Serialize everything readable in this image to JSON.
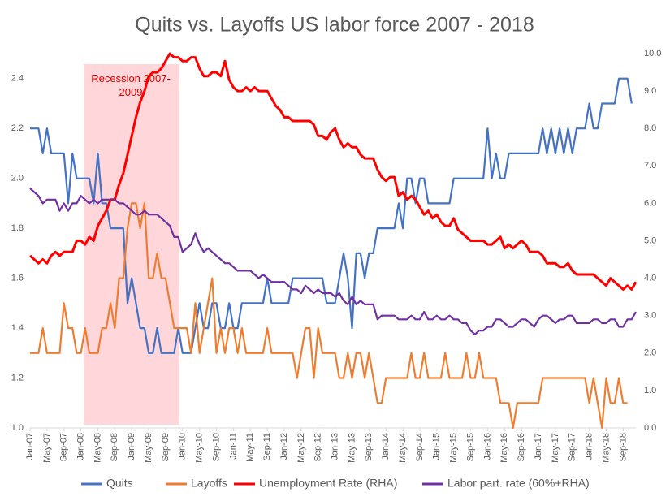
{
  "chart_data": {
    "type": "line",
    "title": "Quits vs. Layoffs US labor force 2007 - 2018",
    "annotation": "Recession 2007-2009",
    "categories": [
      "Jan-07",
      null,
      null,
      null,
      "May-07",
      null,
      null,
      null,
      "Sep-07",
      null,
      null,
      null,
      "Jan-08",
      null,
      null,
      null,
      "May-08",
      null,
      null,
      null,
      "Sep-08",
      null,
      null,
      null,
      "Jan-09",
      null,
      null,
      null,
      "May-09",
      null,
      null,
      null,
      "Sep-09",
      null,
      null,
      null,
      "Jan-10",
      null,
      null,
      null,
      "May-10",
      null,
      null,
      null,
      "Sep-10",
      null,
      null,
      null,
      "Jan-11",
      null,
      null,
      null,
      "May-11",
      null,
      null,
      null,
      "Sep-11",
      null,
      null,
      null,
      "Jan-12",
      null,
      null,
      null,
      "May-12",
      null,
      null,
      null,
      "Sep-12",
      null,
      null,
      null,
      "Jan-13",
      null,
      null,
      null,
      "May-13",
      null,
      null,
      null,
      "Sep-13",
      null,
      null,
      null,
      "Jan-14",
      null,
      null,
      null,
      "May-14",
      null,
      null,
      null,
      "Sep-14",
      null,
      null,
      null,
      "Jan-15",
      null,
      null,
      null,
      "May-15",
      null,
      null,
      null,
      "Sep-15",
      null,
      null,
      null,
      "Jan-16",
      null,
      null,
      null,
      "May-16",
      null,
      null,
      null,
      "Sep-16",
      null,
      null,
      null,
      "Jan-17",
      null,
      null,
      null,
      "May-17",
      null,
      null,
      null,
      "Sep-17",
      null,
      null,
      null,
      "Jan-18",
      null,
      null,
      null,
      "May-18",
      null,
      null,
      null,
      "Sep-18",
      null,
      null,
      null
    ],
    "series": [
      {
        "name": "Quits",
        "color": "#4472c4",
        "values": [
          2.2,
          2.2,
          2.2,
          2.1,
          2.2,
          2.1,
          2.1,
          2.1,
          2.1,
          1.9,
          2.1,
          2.0,
          2.0,
          2.0,
          2.0,
          1.9,
          2.1,
          1.9,
          1.9,
          1.8,
          1.8,
          1.8,
          1.8,
          1.5,
          1.6,
          1.5,
          1.4,
          1.4,
          1.3,
          1.3,
          1.4,
          1.3,
          1.3,
          1.3,
          1.3,
          1.4,
          1.3,
          1.3,
          1.3,
          1.4,
          1.5,
          1.4,
          1.4,
          1.5,
          1.5,
          1.4,
          1.4,
          1.5,
          1.4,
          1.4,
          1.5,
          1.5,
          1.5,
          1.5,
          1.5,
          1.5,
          1.6,
          1.5,
          1.5,
          1.5,
          1.5,
          1.5,
          1.6,
          1.6,
          1.6,
          1.6,
          1.6,
          1.6,
          1.6,
          1.6,
          1.5,
          1.5,
          1.5,
          1.6,
          1.7,
          1.6,
          1.4,
          1.7,
          1.7,
          1.6,
          1.7,
          1.7,
          1.8,
          1.8,
          1.8,
          1.8,
          1.8,
          1.9,
          1.8,
          2.0,
          2.0,
          1.9,
          2.0,
          2.0,
          1.9,
          1.9,
          1.9,
          1.9,
          1.9,
          1.9,
          2.0,
          2.0,
          2.0,
          2.0,
          2.0,
          2.0,
          2.0,
          2.0,
          2.2,
          2.0,
          2.1,
          2.0,
          2.0,
          2.1,
          2.1,
          2.1,
          2.1,
          2.1,
          2.1,
          2.1,
          2.1,
          2.2,
          2.1,
          2.2,
          2.1,
          2.2,
          2.1,
          2.2,
          2.1,
          2.2,
          2.2,
          2.2,
          2.3,
          2.2,
          2.2,
          2.3,
          2.3,
          2.3,
          2.3,
          2.4,
          2.4,
          2.4,
          2.3,
          null
        ]
      },
      {
        "name": "Layoffs",
        "color": "#ed7d31",
        "values": [
          1.3,
          1.3,
          1.3,
          1.4,
          1.3,
          1.3,
          1.3,
          1.3,
          1.5,
          1.4,
          1.4,
          1.3,
          1.3,
          1.4,
          1.3,
          1.3,
          1.3,
          1.4,
          1.4,
          1.5,
          1.4,
          1.6,
          1.6,
          1.8,
          1.9,
          1.9,
          1.8,
          1.9,
          1.6,
          1.6,
          1.7,
          1.6,
          1.6,
          1.5,
          1.4,
          1.4,
          1.4,
          1.4,
          1.3,
          1.5,
          1.3,
          1.4,
          1.5,
          1.6,
          1.3,
          1.4,
          1.3,
          1.4,
          1.4,
          1.3,
          1.4,
          1.3,
          1.3,
          1.3,
          1.3,
          1.3,
          1.4,
          1.3,
          1.3,
          1.3,
          1.3,
          1.3,
          1.3,
          1.2,
          1.3,
          1.4,
          1.4,
          1.2,
          1.4,
          1.3,
          1.3,
          1.3,
          1.3,
          1.2,
          1.2,
          1.3,
          1.2,
          1.3,
          1.3,
          1.2,
          1.3,
          1.2,
          1.1,
          1.1,
          1.2,
          1.2,
          1.2,
          1.2,
          1.2,
          1.2,
          1.3,
          1.2,
          1.2,
          1.3,
          1.2,
          1.2,
          1.2,
          1.2,
          1.3,
          1.2,
          1.2,
          1.2,
          1.2,
          1.3,
          1.2,
          1.2,
          1.3,
          1.2,
          1.2,
          1.2,
          1.2,
          1.1,
          1.1,
          1.1,
          1.0,
          1.1,
          1.1,
          1.1,
          1.1,
          1.1,
          1.1,
          1.2,
          1.2,
          1.2,
          1.2,
          1.2,
          1.2,
          1.2,
          1.2,
          1.2,
          1.2,
          1.2,
          1.1,
          1.2,
          1.1,
          1.0,
          1.2,
          1.1,
          1.1,
          1.2,
          1.1,
          1.1,
          null,
          null
        ]
      },
      {
        "name": "Unemployment Rate (RHA)",
        "color": "#ff0000",
        "axis": "y2",
        "values": [
          4.6,
          4.5,
          4.4,
          4.5,
          4.4,
          4.6,
          4.7,
          4.6,
          4.7,
          4.7,
          4.7,
          5.0,
          5.0,
          4.9,
          5.1,
          5.0,
          5.4,
          5.6,
          5.8,
          6.1,
          6.1,
          6.5,
          6.8,
          7.3,
          7.8,
          8.3,
          8.7,
          9.0,
          9.4,
          9.5,
          9.5,
          9.6,
          9.8,
          10.0,
          9.9,
          9.9,
          9.8,
          9.8,
          9.9,
          9.9,
          9.6,
          9.4,
          9.4,
          9.5,
          9.5,
          9.4,
          9.8,
          9.3,
          9.1,
          9.0,
          9.0,
          9.1,
          9.0,
          9.1,
          9.0,
          9.0,
          9.0,
          8.8,
          8.6,
          8.5,
          8.3,
          8.3,
          8.2,
          8.2,
          8.2,
          8.2,
          8.2,
          8.1,
          7.8,
          7.8,
          7.7,
          7.9,
          8.0,
          7.7,
          7.5,
          7.6,
          7.5,
          7.5,
          7.3,
          7.2,
          7.2,
          7.2,
          6.9,
          6.7,
          6.6,
          6.7,
          6.7,
          6.2,
          6.3,
          6.1,
          6.2,
          6.1,
          5.9,
          5.7,
          5.8,
          5.6,
          5.7,
          5.5,
          5.4,
          5.4,
          5.6,
          5.3,
          5.2,
          5.1,
          5.0,
          5.0,
          5.0,
          5.0,
          4.9,
          4.9,
          5.0,
          5.1,
          4.8,
          4.9,
          4.8,
          4.9,
          5.0,
          4.9,
          4.7,
          4.7,
          4.7,
          4.6,
          4.4,
          4.4,
          4.4,
          4.3,
          4.3,
          4.4,
          4.2,
          4.1,
          4.1,
          4.1,
          4.1,
          4.1,
          4.0,
          3.9,
          3.8,
          4.0,
          3.9,
          3.8,
          3.7,
          3.8,
          3.7,
          3.9
        ]
      },
      {
        "name": "Labor part. rate (60%+RHA)",
        "color": "#7030a0",
        "axis": "y2",
        "values": [
          6.4,
          6.3,
          6.2,
          6.0,
          6.1,
          6.1,
          6.1,
          5.8,
          6.0,
          5.8,
          6.0,
          6.0,
          6.2,
          6.1,
          6.0,
          6.1,
          6.0,
          6.1,
          6.1,
          6.1,
          6.1,
          6.0,
          6.0,
          5.9,
          5.8,
          5.7,
          5.7,
          5.8,
          5.7,
          5.7,
          5.7,
          5.6,
          5.5,
          5.4,
          5.1,
          5.1,
          4.7,
          4.8,
          4.9,
          5.2,
          4.9,
          4.7,
          4.8,
          4.7,
          4.6,
          4.5,
          4.4,
          4.4,
          4.3,
          4.2,
          4.2,
          4.2,
          4.2,
          4.1,
          4.0,
          4.1,
          4.0,
          3.9,
          3.9,
          3.9,
          3.9,
          3.8,
          3.7,
          3.7,
          3.6,
          3.8,
          3.7,
          3.6,
          3.7,
          3.6,
          3.6,
          3.6,
          3.5,
          3.6,
          3.4,
          3.3,
          3.5,
          3.3,
          3.4,
          3.3,
          3.3,
          3.3,
          2.9,
          3.0,
          3.0,
          3.0,
          3.0,
          2.9,
          2.9,
          2.9,
          3.0,
          2.9,
          2.9,
          3.1,
          2.9,
          2.9,
          3.0,
          2.9,
          2.9,
          3.0,
          2.9,
          2.9,
          2.8,
          2.8,
          2.6,
          2.5,
          2.6,
          2.6,
          2.7,
          2.7,
          2.9,
          2.9,
          2.8,
          2.7,
          2.7,
          2.8,
          2.9,
          2.9,
          2.8,
          2.7,
          2.9,
          3.0,
          3.0,
          2.9,
          2.8,
          2.9,
          2.9,
          3.0,
          3.0,
          2.8,
          2.8,
          2.8,
          2.8,
          2.9,
          2.9,
          2.8,
          2.8,
          2.9,
          2.9,
          2.7,
          2.7,
          2.9,
          2.9,
          3.1
        ]
      }
    ],
    "ylim": [
      1.0,
      2.5
    ],
    "yticks": [
      {
        "value": 1.0,
        "label": "1.0"
      },
      1.2,
      1.4,
      1.6,
      1.8,
      {
        "value": 2.0,
        "label": "2.0"
      },
      2.2,
      2.4
    ],
    "y2lim": [
      0,
      10
    ],
    "y2ticks": [
      {
        "value": 0,
        "label": "0.0"
      },
      {
        "value": 1,
        "label": "1.0"
      },
      {
        "value": 2,
        "label": "2.0"
      },
      {
        "value": 3,
        "label": "3.0"
      },
      {
        "value": 4,
        "label": "4.0"
      },
      {
        "value": 5,
        "label": "5.0"
      },
      {
        "value": 6,
        "label": "6.0"
      },
      {
        "value": 7,
        "label": "7.0"
      },
      {
        "value": 8,
        "label": "8.0"
      },
      {
        "value": 9,
        "label": "9.0"
      },
      {
        "value": 10,
        "label": "10.0"
      }
    ],
    "grid": false,
    "legend": "bottom"
  }
}
